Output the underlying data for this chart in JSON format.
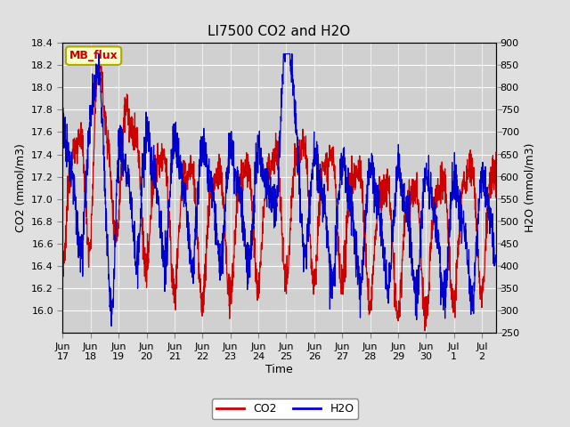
{
  "title": "LI7500 CO2 and H2O",
  "xlabel": "Time",
  "ylabel_left": "CO2 (mmol/m3)",
  "ylabel_right": "H2O (mmol/m3)",
  "co2_ylim": [
    15.8,
    18.4
  ],
  "h2o_ylim": [
    250,
    900
  ],
  "co2_yticks": [
    16.0,
    16.2,
    16.4,
    16.6,
    16.8,
    17.0,
    17.2,
    17.4,
    17.6,
    17.8,
    18.0,
    18.2,
    18.4
  ],
  "h2o_yticks": [
    250,
    300,
    350,
    400,
    450,
    500,
    550,
    600,
    650,
    700,
    750,
    800,
    850,
    900
  ],
  "co2_color": "#cc0000",
  "h2o_color": "#0000cc",
  "fig_facecolor": "#e0e0e0",
  "plot_facecolor": "#d0d0d0",
  "grid_color": "#ffffff",
  "annotation_text": "MB_flux",
  "annotation_facecolor": "#ffffcc",
  "annotation_edgecolor": "#aaaa00",
  "legend_co2": "CO2",
  "legend_h2o": "H2O",
  "xtick_labels": [
    "Jun\n17",
    "Jun\n18",
    "Jun\n19",
    "Jun\n20",
    "Jun\n21",
    "Jun\n22",
    "Jun\n23",
    "Jun\n24",
    "Jun\n25",
    "Jun\n26",
    "Jun\n27",
    "Jun\n28",
    "Jun\n29",
    "Jun\n30",
    "Jul\n1",
    "Jul\n2"
  ],
  "title_fontsize": 11,
  "axis_fontsize": 9,
  "tick_fontsize": 8,
  "annotation_fontsize": 9,
  "legend_fontsize": 9
}
